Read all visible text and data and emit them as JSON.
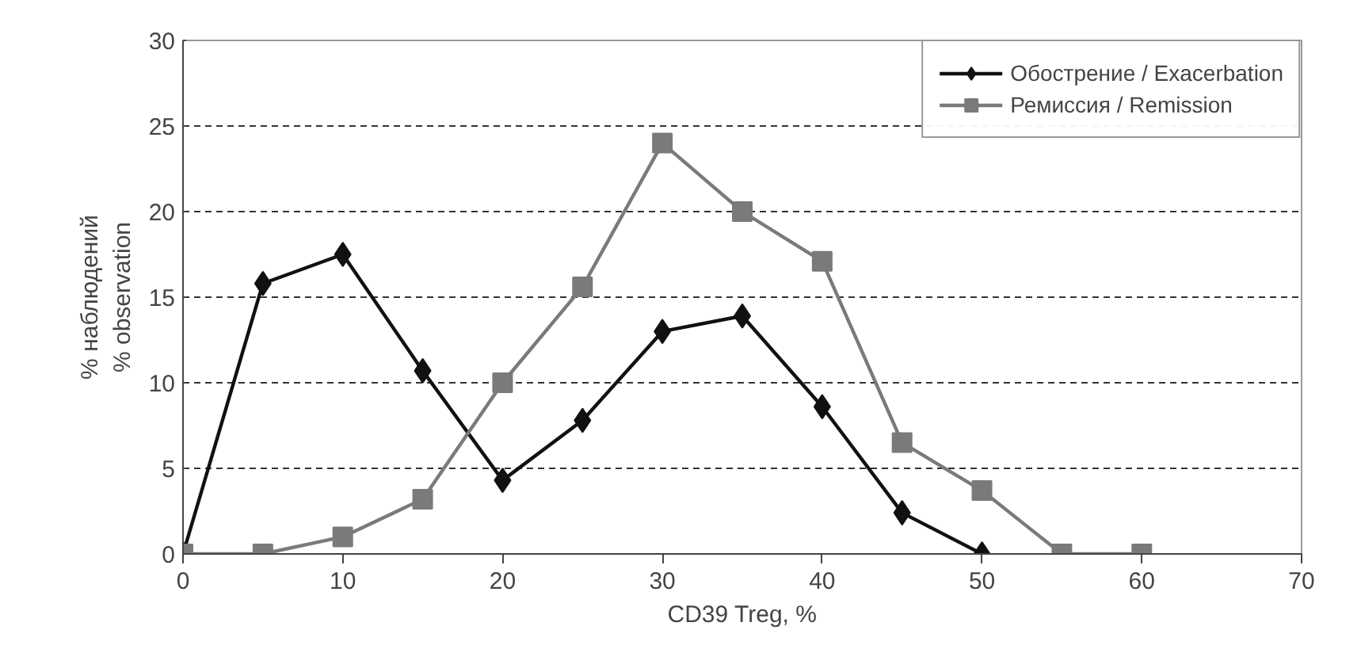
{
  "chart_data": {
    "type": "line",
    "xlabel": "CD39 Treg, %",
    "ylabel": "% наблюдений\n% observation",
    "x": [
      0,
      5,
      10,
      15,
      20,
      25,
      30,
      35,
      40,
      45,
      50,
      55,
      60
    ],
    "series": [
      {
        "name": "Обострение / Exacerbation",
        "color": "#111111",
        "marker": "diamond",
        "values": [
          0,
          15.8,
          17.5,
          10.7,
          4.3,
          7.8,
          13,
          13.9,
          8.6,
          2.4,
          0,
          null,
          null
        ]
      },
      {
        "name": "Ремиссия / Remission",
        "color": "#7a7a7a",
        "marker": "square",
        "values": [
          0,
          0,
          1,
          3.2,
          10,
          15.6,
          24,
          20,
          17.1,
          6.5,
          3.7,
          0,
          0
        ]
      }
    ],
    "xlim": [
      0,
      70
    ],
    "xticks": [
      0,
      10,
      20,
      30,
      40,
      50,
      60,
      70
    ],
    "ylim": [
      0,
      30
    ],
    "yticks": [
      0,
      5,
      10,
      15,
      20,
      25,
      30
    ],
    "grid": "y",
    "legend": "top right",
    "line_style": "solid"
  }
}
